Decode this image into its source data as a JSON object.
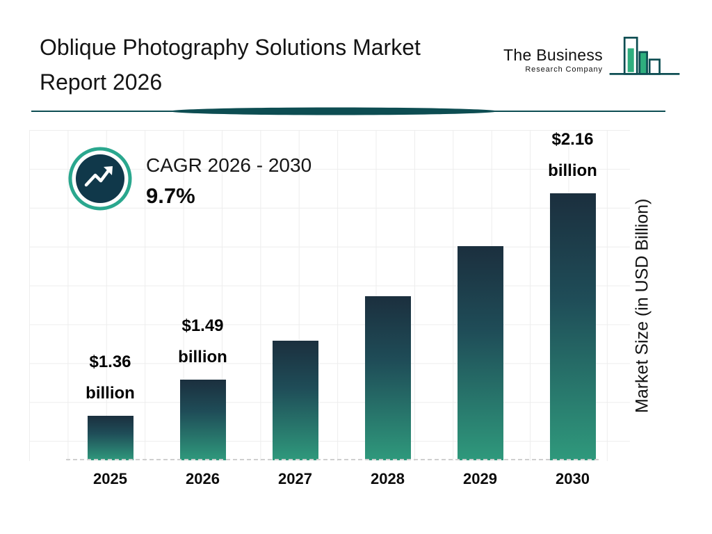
{
  "title": {
    "line1": "Oblique Photography Solutions Market",
    "line2": "Report 2026"
  },
  "logo": {
    "name": "The Business",
    "subtitle": "Research Company"
  },
  "cagr": {
    "label": "CAGR 2026 - 2030",
    "value": "9.7%"
  },
  "chart_data": {
    "type": "bar",
    "title": "Oblique Photography Solutions Market Report 2026",
    "categories": [
      "2025",
      "2026",
      "2027",
      "2028",
      "2029",
      "2030"
    ],
    "values": [
      1.36,
      1.49,
      1.63,
      1.79,
      1.97,
      2.16
    ],
    "bar_labels": [
      "$1.36 billion",
      "$1.49 billion",
      "",
      "",
      "",
      "$2.16 billion"
    ],
    "xlabel": "",
    "ylabel": "Market Size (in USD Billion)",
    "ylim": [
      1.2,
      2.2
    ],
    "grid": true,
    "legend": false,
    "cagr_annotation": "CAGR 2026 - 2030: 9.7%",
    "colors": {
      "bar_gradient_top": "#1b2f3e",
      "bar_gradient_bottom": "#2f997c",
      "accent_teal_ring": "#2aa78e",
      "dark_navy_circle": "#10384a",
      "divider_teal": "#0d4d52",
      "logo_green": "#2fae7e"
    }
  }
}
